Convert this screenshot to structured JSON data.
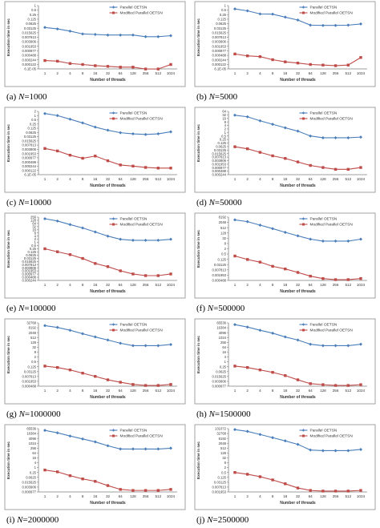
{
  "figure": {
    "series_names": [
      "Parallel OETSN",
      "Modified Parallel OETSN"
    ],
    "series_colors": [
      "#4a7ebb",
      "#be4b48"
    ],
    "xlabel": "Number of threads",
    "ylabel": "Execution time in sec"
  },
  "chart_data": [
    {
      "type": "line",
      "caption_prefix": "(a) ",
      "caption_var": "N",
      "caption_rest": "=1000",
      "title": "",
      "xlabel": "Number of threads",
      "ylabel": "Execution time in sec",
      "scale": "log2",
      "categories": [
        "1",
        "2",
        "4",
        "8",
        "16",
        "32",
        "64",
        "128",
        "256",
        "512",
        "1024"
      ],
      "yticks": [
        "1",
        "0.5",
        "0.25",
        "0.125",
        "0.0625",
        "0.03125",
        "0.015625",
        "0.007813",
        "0.003906",
        "0.001953",
        "0.000977",
        "0.000488",
        "0.000244",
        "0.000122",
        "6.1E-05"
      ],
      "series": [
        {
          "name": "Parallel OETSN",
          "values": [
            0.035,
            0.028,
            0.02,
            0.013,
            0.012,
            0.011,
            0.011,
            0.011,
            0.0085,
            0.0085,
            0.01
          ]
        },
        {
          "name": "Modified Parallel OETSN",
          "values": [
            0.00022,
            0.0002,
            0.00014,
            0.00012,
            0.0001,
            9e-05,
            8e-05,
            8e-05,
            6e-05,
            6e-05,
            0.00012
          ]
        }
      ]
    },
    {
      "type": "line",
      "caption_prefix": "(b) ",
      "caption_var": "N",
      "caption_rest": "=5000",
      "title": "",
      "xlabel": "Number of threads",
      "ylabel": "Execution time in sec",
      "scale": "log2",
      "categories": [
        "1",
        "2",
        "4",
        "8",
        "16",
        "32",
        "64",
        "128",
        "256",
        "512",
        "1024"
      ],
      "yticks": [
        "1",
        "0.5",
        "0.25",
        "0.125",
        "0.0625",
        "0.03125",
        "0.015625",
        "0.007813",
        "0.003906",
        "0.001953",
        "0.000977",
        "0.000488",
        "0.000244",
        "0.000122",
        "6.1E-05"
      ],
      "series": [
        {
          "name": "Parallel OETSN",
          "values": [
            0.6,
            0.45,
            0.28,
            0.27,
            0.17,
            0.11,
            0.05,
            0.048,
            0.048,
            0.05,
            0.06
          ]
        },
        {
          "name": "Modified Parallel OETSN",
          "values": [
            0.0006,
            0.00045,
            0.0004,
            0.00025,
            0.00018,
            0.00015,
            0.00012,
            0.00011,
            0.0001,
            0.00011,
            0.00035
          ]
        }
      ]
    },
    {
      "type": "line",
      "caption_prefix": "(c) ",
      "caption_var": "N",
      "caption_rest": "=10000",
      "title": "",
      "xlabel": "Number of threads",
      "ylabel": "Execution time in sec",
      "scale": "log2",
      "categories": [
        "1",
        "2",
        "4",
        "8",
        "16",
        "32",
        "64",
        "128",
        "256",
        "512",
        "1024"
      ],
      "yticks": [
        "2",
        "1",
        "0.5",
        "0.25",
        "0.125",
        "0.0625",
        "0.03125",
        "0.015625",
        "0.007813",
        "0.003906",
        "0.001953",
        "0.000977",
        "0.000488",
        "0.000244",
        "0.000122",
        "6.1E-05"
      ],
      "series": [
        {
          "name": "Parallel OETSN",
          "values": [
            1.4,
            1.0,
            0.55,
            0.3,
            0.15,
            0.09,
            0.06,
            0.05,
            0.045,
            0.05,
            0.07
          ]
        },
        {
          "name": "Modified Parallel OETSN",
          "values": [
            0.0045,
            0.003,
            0.0015,
            0.0009,
            0.0013,
            0.0006,
            0.0003,
            0.00025,
            0.0002,
            0.00018,
            0.00018
          ]
        }
      ]
    },
    {
      "type": "line",
      "caption_prefix": "(d) ",
      "caption_var": "N",
      "caption_rest": "=50000",
      "title": "",
      "xlabel": "Number of threads",
      "ylabel": "Execution time in sec",
      "scale": "log2",
      "categories": [
        "1",
        "2",
        "4",
        "8",
        "16",
        "32",
        "64",
        "128",
        "256",
        "512",
        "1024"
      ],
      "yticks": [
        "64",
        "32",
        "16",
        "8",
        "4",
        "2",
        "1",
        "0.5",
        "0.25",
        "0.125",
        "0.0625",
        "0.03125",
        "0.015625",
        "0.007813",
        "0.003906",
        "0.001953",
        "0.000977",
        "0.000488",
        "0.000244"
      ],
      "series": [
        {
          "name": "Parallel OETSN",
          "values": [
            30,
            22,
            10,
            5,
            2.5,
            1.3,
            0.5,
            0.35,
            0.35,
            0.35,
            0.4
          ]
        },
        {
          "name": "Modified Parallel OETSN",
          "values": [
            0.06,
            0.04,
            0.02,
            0.01,
            0.006,
            0.003,
            0.0015,
            0.001,
            0.0007,
            0.0007,
            0.001
          ]
        }
      ]
    },
    {
      "type": "line",
      "caption_prefix": "(e) ",
      "caption_var": "N",
      "caption_rest": "=100000",
      "title": "",
      "xlabel": "Number of threads",
      "ylabel": "Execution time in sec",
      "scale": "log2",
      "categories": [
        "1",
        "2",
        "4",
        "8",
        "16",
        "32",
        "64",
        "128",
        "256",
        "512",
        "1024"
      ],
      "yticks": [
        "256",
        "128",
        "64",
        "32",
        "16",
        "8",
        "4",
        "2",
        "1",
        "0.5",
        "0.25",
        "0.125",
        "0.0625",
        "0.03125",
        "0.015625",
        "0.007813",
        "0.003906",
        "0.001953",
        "0.000977",
        "0.000488",
        "0.000244"
      ],
      "series": [
        {
          "name": "Parallel OETSN",
          "values": [
            180,
            110,
            50,
            24,
            10,
            4,
            2,
            1.6,
            1.6,
            1.6,
            2.0
          ]
        },
        {
          "name": "Modified Parallel OETSN",
          "values": [
            0.25,
            0.13,
            0.07,
            0.03,
            0.01,
            0.005,
            0.002,
            0.001,
            0.0007,
            0.0007,
            0.001
          ]
        }
      ]
    },
    {
      "type": "line",
      "caption_prefix": "(f) ",
      "caption_var": "N",
      "caption_rest": "=500000",
      "title": "",
      "xlabel": "Number of threads",
      "ylabel": "Execution time in sec",
      "scale": "log2",
      "categories": [
        "1",
        "2",
        "4",
        "8",
        "16",
        "32",
        "64",
        "128",
        "256",
        "512",
        "1024"
      ],
      "yticks": [
        "8192",
        "2048",
        "512",
        "128",
        "32",
        "8",
        "2",
        "0.5",
        "0.125",
        "0.03125",
        "0.007813",
        "0.001953",
        "0.000488"
      ],
      "series": [
        {
          "name": "Parallel OETSN",
          "values": [
            4000,
            2500,
            1000,
            400,
            150,
            60,
            25,
            15,
            15,
            15,
            25
          ]
        },
        {
          "name": "Modified Parallel OETSN",
          "values": [
            0.3,
            0.12,
            0.06,
            0.02,
            0.01,
            0.004,
            0.0015,
            0.0008,
            0.0006,
            0.0006,
            0.0008
          ]
        }
      ]
    },
    {
      "type": "line",
      "caption_prefix": "(g) ",
      "caption_var": "N",
      "caption_rest": "=1000000",
      "title": "",
      "xlabel": "Number of threads",
      "ylabel": "Execution time in sec",
      "scale": "log2",
      "categories": [
        "1",
        "2",
        "4",
        "8",
        "16",
        "32",
        "64",
        "128",
        "256",
        "512",
        "1024"
      ],
      "yticks": [
        "32768",
        "8192",
        "2048",
        "512",
        "128",
        "32",
        "8",
        "2",
        "0.5",
        "0.125",
        "0.03125",
        "0.007813",
        "0.001953",
        "0.000488"
      ],
      "series": [
        {
          "name": "Parallel OETSN",
          "values": [
            15000,
            9000,
            4000,
            1500,
            600,
            250,
            100,
            50,
            50,
            50,
            70
          ]
        },
        {
          "name": "Modified Parallel OETSN",
          "values": [
            0.15,
            0.1,
            0.05,
            0.02,
            0.008,
            0.003,
            0.0015,
            0.0008,
            0.0006,
            0.0006,
            0.0008
          ]
        }
      ]
    },
    {
      "type": "line",
      "caption_prefix": "(h) ",
      "caption_var": "N",
      "caption_rest": "=1500000",
      "title": "",
      "xlabel": "Number of threads",
      "ylabel": "Execution time in sec",
      "scale": "log2",
      "categories": [
        "1",
        "2",
        "4",
        "8",
        "16",
        "32",
        "64",
        "128",
        "256",
        "512",
        "1024"
      ],
      "yticks": [
        "65536",
        "16384",
        "4096",
        "1024",
        "256",
        "64",
        "16",
        "4",
        "1",
        "0.25",
        "0.0625",
        "0.015625",
        "0.003906",
        "0.000977"
      ],
      "series": [
        {
          "name": "Parallel OETSN",
          "values": [
            40000,
            20000,
            8000,
            3500,
            1200,
            500,
            150,
            100,
            100,
            100,
            150
          ]
        },
        {
          "name": "Modified Parallel OETSN",
          "values": [
            0.3,
            0.2,
            0.1,
            0.05,
            0.02,
            0.006,
            0.002,
            0.0015,
            0.0012,
            0.0012,
            0.0015
          ]
        }
      ]
    },
    {
      "type": "line",
      "caption_prefix": "(i) ",
      "caption_var": "N",
      "caption_rest": "=2000000",
      "title": "",
      "xlabel": "Number of threads",
      "ylabel": "Execution time in sec",
      "scale": "log2",
      "categories": [
        "1",
        "2",
        "4",
        "8",
        "16",
        "32",
        "64",
        "128",
        "256",
        "512",
        "1024"
      ],
      "yticks": [
        "65536",
        "16384",
        "4096",
        "1024",
        "256",
        "64",
        "16",
        "4",
        "1",
        "0.25",
        "0.0625",
        "0.015625",
        "0.003906",
        "0.000977"
      ],
      "series": [
        {
          "name": "Parallel OETSN",
          "values": [
            40000,
            20000,
            8000,
            3500,
            1500,
            500,
            200,
            200,
            200,
            200,
            250
          ]
        },
        {
          "name": "Modified Parallel OETSN",
          "values": [
            0.5,
            0.3,
            0.1,
            0.04,
            0.02,
            0.006,
            0.002,
            0.0015,
            0.0015,
            0.0015,
            0.002
          ]
        }
      ]
    },
    {
      "type": "line",
      "caption_prefix": "(j) ",
      "caption_var": "N",
      "caption_rest": "=2500000",
      "title": "",
      "xlabel": "Number of threads",
      "ylabel": "Execution time in sec",
      "scale": "log2",
      "categories": [
        "1",
        "2",
        "4",
        "8",
        "16",
        "32",
        "64",
        "128",
        "256",
        "512",
        "1024"
      ],
      "yticks": [
        "131072",
        "32768",
        "8192",
        "2048",
        "512",
        "128",
        "32",
        "8",
        "2",
        "0.5",
        "0.125",
        "0.03125",
        "0.007813",
        "0.001953"
      ],
      "series": [
        {
          "name": "Parallel OETSN",
          "values": [
            100000,
            60000,
            25000,
            10000,
            4000,
            1500,
            300,
            250,
            250,
            250,
            350
          ]
        },
        {
          "name": "Modified Parallel OETSN",
          "values": [
            0.5,
            0.3,
            0.15,
            0.06,
            0.02,
            0.006,
            0.003,
            0.0025,
            0.0025,
            0.0025,
            0.003
          ]
        }
      ]
    }
  ]
}
